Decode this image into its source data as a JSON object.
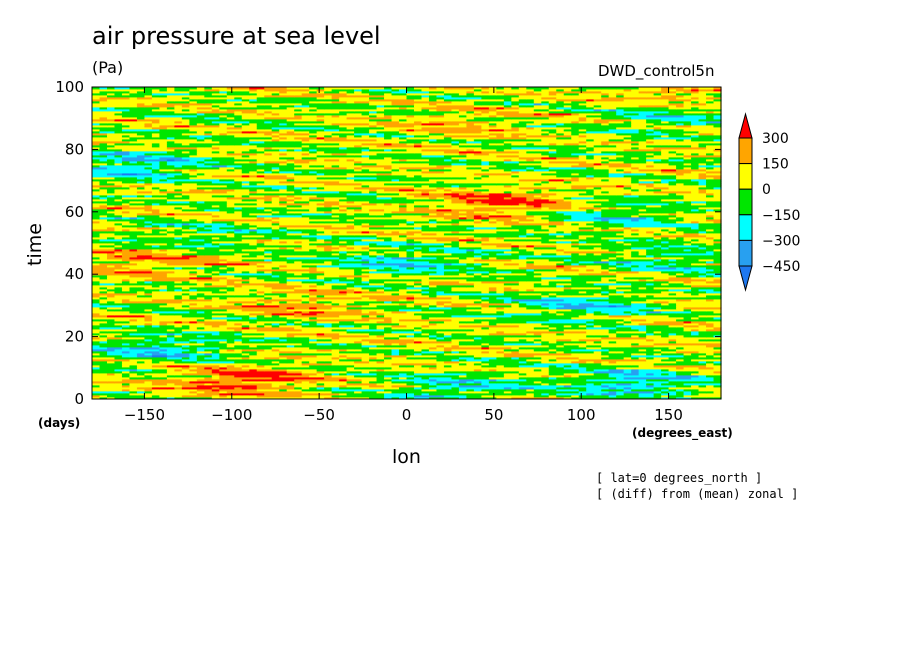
{
  "title": "air pressure at sea level",
  "units": "(Pa)",
  "source": "DWD_control5n",
  "time_units": "(days)",
  "lon_units": "(degrees_east)",
  "notes": [
    "[ lat=0 degrees_north ]",
    "[ (diff) from (mean) zonal ]"
  ],
  "colors": {
    "lt_minus450": "#1e78f0",
    "minus450_to_minus300": "#28a0f0",
    "minus300_to_minus150": "#00ffff",
    "minus150_to_0": "#00e600",
    "0_to_150": "#ffff00",
    "150_to_300": "#ffa500",
    "gt_300": "#ff0000"
  },
  "chart_data": {
    "type": "heatmap",
    "title": "air pressure at sea level",
    "xlabel": "lon",
    "ylabel": "time",
    "xlim": [
      -180,
      180
    ],
    "ylim": [
      0,
      100
    ],
    "xticks": [
      -150,
      -100,
      -50,
      0,
      50,
      100,
      150
    ],
    "yticks": [
      0,
      20,
      40,
      60,
      80,
      100
    ],
    "colorbar_levels": [
      -450,
      -300,
      -150,
      0,
      150,
      300
    ],
    "colorbar_labels": [
      "300",
      "150",
      "0",
      "−150",
      "−300",
      "−450"
    ],
    "features": [
      {
        "lon": -95,
        "time": 6,
        "value": 330
      },
      {
        "lon": 55,
        "time": 63,
        "value": 310
      },
      {
        "lon": -150,
        "time": 44,
        "value": 200
      },
      {
        "lon": 155,
        "time": 99,
        "value": 200
      },
      {
        "lon": -60,
        "time": 30,
        "value": 160
      },
      {
        "lon": 30,
        "time": 88,
        "value": 130
      },
      {
        "lon": 130,
        "time": 5,
        "value": -330
      },
      {
        "lon": 30,
        "time": 4,
        "value": -250
      },
      {
        "lon": -140,
        "time": 16,
        "value": -280
      },
      {
        "lon": -155,
        "time": 75,
        "value": -310
      },
      {
        "lon": 0,
        "time": 44,
        "value": -250
      },
      {
        "lon": 100,
        "time": 30,
        "value": -260
      },
      {
        "lon": 120,
        "time": 59,
        "value": -200
      },
      {
        "lon": 150,
        "time": 45,
        "value": -180
      },
      {
        "lon": -120,
        "time": 52,
        "value": -150
      },
      {
        "lon": 150,
        "time": 90,
        "value": -170
      }
    ]
  }
}
